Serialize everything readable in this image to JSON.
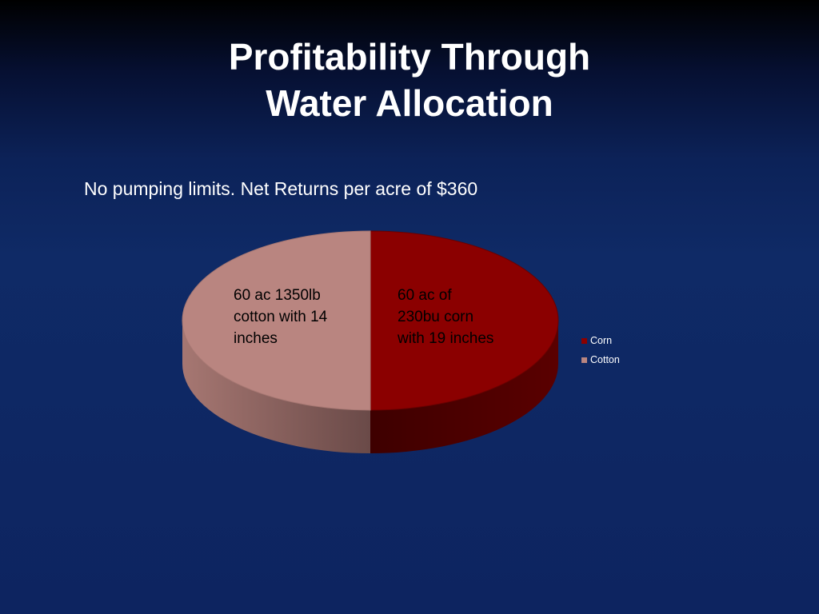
{
  "slide": {
    "title_line1": "Profitability Through",
    "title_line2": "Water Allocation",
    "subtitle": "No pumping limits.  Net Returns per acre of $360"
  },
  "chart_data": {
    "type": "pie",
    "style": "3d",
    "legend_position": "right",
    "series": [
      {
        "name": "Corn",
        "value": 60,
        "label": [
          "60 ac of",
          "230bu corn",
          "with 19 inches"
        ],
        "color": "#8b0000",
        "side_color": "#4a0000",
        "label_color": "#000000"
      },
      {
        "name": "Cotton",
        "value": 60,
        "label": [
          "60 ac 1350lb",
          "cotton with 14",
          "inches"
        ],
        "color": "#b98580",
        "side_color": "#7a5552",
        "label_color": "#000000"
      }
    ]
  }
}
